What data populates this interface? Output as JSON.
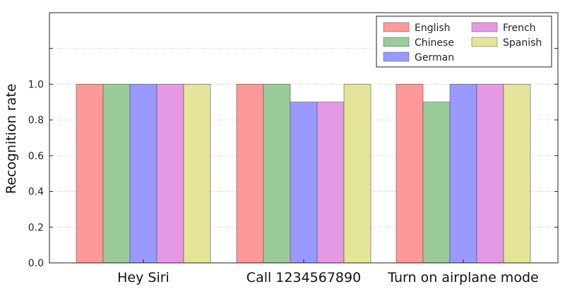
{
  "chart_data": {
    "type": "bar",
    "categories": [
      "Hey Siri",
      "Call 1234567890",
      "Turn on airplane mode"
    ],
    "series": [
      {
        "name": "English",
        "color": "#ff9999",
        "values": [
          1.0,
          1.0,
          1.0
        ]
      },
      {
        "name": "Chinese",
        "color": "#99cc99",
        "values": [
          1.0,
          1.0,
          0.9
        ]
      },
      {
        "name": "German",
        "color": "#9999ff",
        "values": [
          1.0,
          0.9,
          1.0
        ]
      },
      {
        "name": "French",
        "color": "#e599e5",
        "values": [
          1.0,
          0.9,
          1.0
        ]
      },
      {
        "name": "Spanish",
        "color": "#e5e599",
        "values": [
          1.0,
          1.0,
          1.0
        ]
      }
    ],
    "xlabel": "",
    "ylabel": "Recognition rate",
    "ylim": [
      0,
      1.4
    ],
    "yticks": [
      "0.0",
      "0.2",
      "0.4",
      "0.6",
      "0.8",
      "1.0"
    ],
    "grid": "horizontal dotted",
    "legend_position": "top-right",
    "legend_columns": 2
  }
}
